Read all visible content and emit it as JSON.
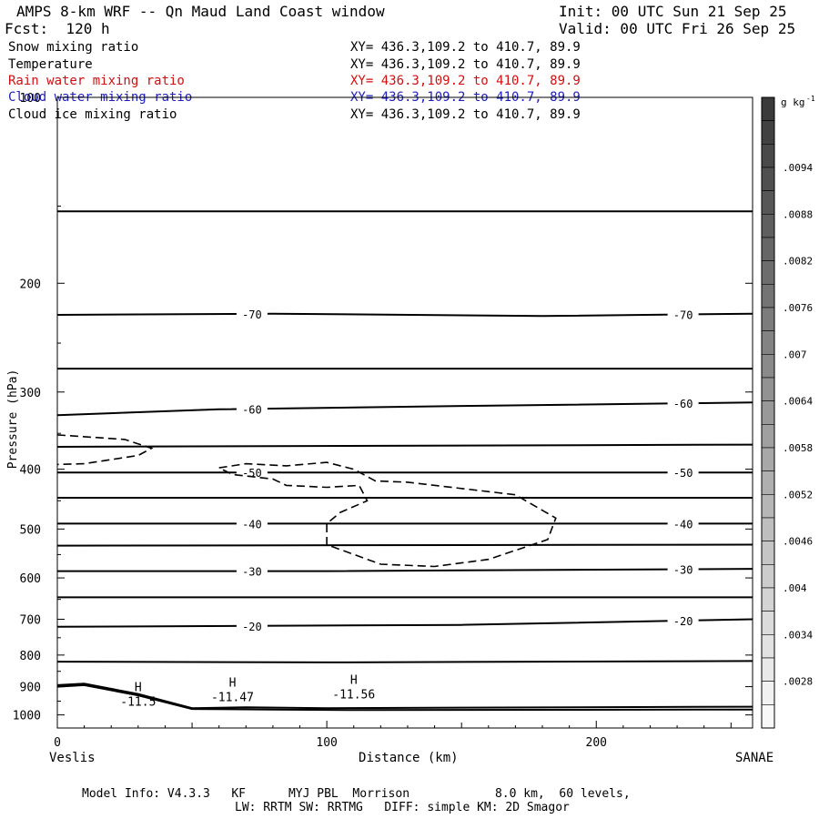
{
  "header": {
    "title": "AMPS 8-km WRF -- Qn Maud Land Coast window",
    "init": "Init: 00 UTC Sun 21 Sep 25",
    "fcst": "Fcst:  120 h",
    "valid": "Valid: 00 UTC Fri 26 Sep 25"
  },
  "fields": [
    {
      "name": "Snow mixing ratio",
      "xy": "XY= 436.3,109.2 to 410.7, 89.9",
      "color": "#000000"
    },
    {
      "name": "Temperature",
      "xy": "XY= 436.3,109.2 to 410.7, 89.9",
      "color": "#000000"
    },
    {
      "name": "Rain water mixing ratio",
      "xy": "XY= 436.3,109.2 to 410.7, 89.9",
      "color": "#d01010"
    },
    {
      "name": "Cloud water mixing ratio",
      "xy": "XY= 436.3,109.2 to 410.7, 89.9",
      "color": "#2020c0"
    },
    {
      "name": "Cloud ice mixing ratio",
      "xy": "XY= 436.3,109.2 to 410.7, 89.9",
      "color": "#000000"
    }
  ],
  "footer": {
    "line1": "Model Info: V4.3.3   KF      MYJ PBL  Morrison            8.0 km,  60 levels,",
    "line2": "LW: RRTM SW: RRTMG   DIFF: simple KM: 2D Smagor"
  },
  "chart_data": {
    "type": "line",
    "xlabel": "Distance (km)",
    "ylabel": "Pressure (hPa)",
    "xlim": [
      0,
      258
    ],
    "ylim": [
      1050,
      100
    ],
    "yscale": "log",
    "x_ticks": [
      0,
      100,
      200
    ],
    "y_ticks": [
      100,
      200,
      300,
      400,
      500,
      600,
      700,
      800,
      900,
      1000
    ],
    "x_endpoint_labels": {
      "left": "Veslis",
      "right": "SANAE"
    },
    "temperature_isotherms": [
      {
        "value": -75,
        "points": [
          [
            0,
            153
          ],
          [
            258,
            153
          ]
        ]
      },
      {
        "value": -70,
        "label": "-70",
        "points": [
          [
            0,
            225
          ],
          [
            80,
            224
          ],
          [
            180,
            226
          ],
          [
            258,
            224
          ]
        ]
      },
      {
        "value": -65,
        "points": [
          [
            0,
            275
          ],
          [
            258,
            275
          ]
        ]
      },
      {
        "value": -60,
        "label": "-60",
        "points": [
          [
            0,
            327
          ],
          [
            60,
            320
          ],
          [
            150,
            316
          ],
          [
            258,
            312
          ]
        ]
      },
      {
        "value": -55,
        "points": [
          [
            0,
            368
          ],
          [
            258,
            365
          ]
        ]
      },
      {
        "value": -50,
        "label": "-50",
        "points": [
          [
            0,
            405
          ],
          [
            258,
            405
          ]
        ]
      },
      {
        "value": -45,
        "points": [
          [
            0,
            445
          ],
          [
            258,
            445
          ]
        ]
      },
      {
        "value": -40,
        "label": "-40",
        "points": [
          [
            0,
            490
          ],
          [
            258,
            490
          ]
        ]
      },
      {
        "value": -35,
        "points": [
          [
            0,
            532
          ],
          [
            258,
            530
          ]
        ]
      },
      {
        "value": -30,
        "label": "-30",
        "points": [
          [
            0,
            585
          ],
          [
            100,
            585
          ],
          [
            258,
            580
          ]
        ]
      },
      {
        "value": -25,
        "points": [
          [
            0,
            645
          ],
          [
            258,
            645
          ]
        ]
      },
      {
        "value": -20,
        "label": "-20",
        "points": [
          [
            0,
            720
          ],
          [
            150,
            715
          ],
          [
            258,
            700
          ]
        ]
      },
      {
        "value": -15,
        "points": [
          [
            0,
            820
          ],
          [
            100,
            822
          ],
          [
            258,
            818
          ]
        ]
      }
    ],
    "snow_mixing_ratio_dashed": [
      [
        [
          0,
          352
        ],
        [
          25,
          358
        ],
        [
          35,
          370
        ],
        [
          30,
          380
        ],
        [
          10,
          392
        ],
        [
          0,
          393
        ]
      ],
      [
        [
          60,
          398
        ],
        [
          70,
          392
        ],
        [
          85,
          395
        ],
        [
          100,
          390
        ],
        [
          110,
          400
        ],
        [
          118,
          418
        ],
        [
          130,
          420
        ],
        [
          170,
          440
        ],
        [
          185,
          480
        ],
        [
          182,
          520
        ],
        [
          160,
          560
        ],
        [
          140,
          575
        ],
        [
          120,
          570
        ],
        [
          100,
          530
        ],
        [
          100,
          490
        ],
        [
          105,
          470
        ],
        [
          115,
          450
        ],
        [
          112,
          425
        ],
        [
          100,
          428
        ],
        [
          85,
          425
        ],
        [
          80,
          415
        ],
        [
          65,
          408
        ],
        [
          60,
          398
        ]
      ]
    ],
    "terrain_lines": [
      {
        "points": [
          [
            0,
            895
          ],
          [
            10,
            890
          ],
          [
            30,
            925
          ],
          [
            50,
            975
          ],
          [
            70,
            972
          ],
          [
            100,
            975
          ],
          [
            150,
            973
          ],
          [
            258,
            970
          ]
        ]
      },
      {
        "points": [
          [
            0,
            900
          ],
          [
            10,
            895
          ],
          [
            30,
            930
          ],
          [
            50,
            978
          ],
          [
            80,
            980
          ],
          [
            110,
            982
          ],
          [
            258,
            980
          ]
        ]
      }
    ],
    "annotations": [
      {
        "marker": "H",
        "value": "-11.5",
        "x": 30,
        "p": 940
      },
      {
        "marker": "H",
        "value": "-11.47",
        "x": 65,
        "p": 925
      },
      {
        "marker": "H",
        "value": "-11.56",
        "x": 110,
        "p": 915
      }
    ],
    "colorbar": {
      "unit": "g kg-1",
      "ticks": [
        ".0094",
        ".0088",
        ".0082",
        ".0076",
        ".007",
        ".0064",
        ".0058",
        ".0052",
        ".0046",
        ".004",
        ".0034",
        ".0028"
      ],
      "color_max": "#3a3a3a",
      "color_min": "#f8f8f8"
    }
  }
}
